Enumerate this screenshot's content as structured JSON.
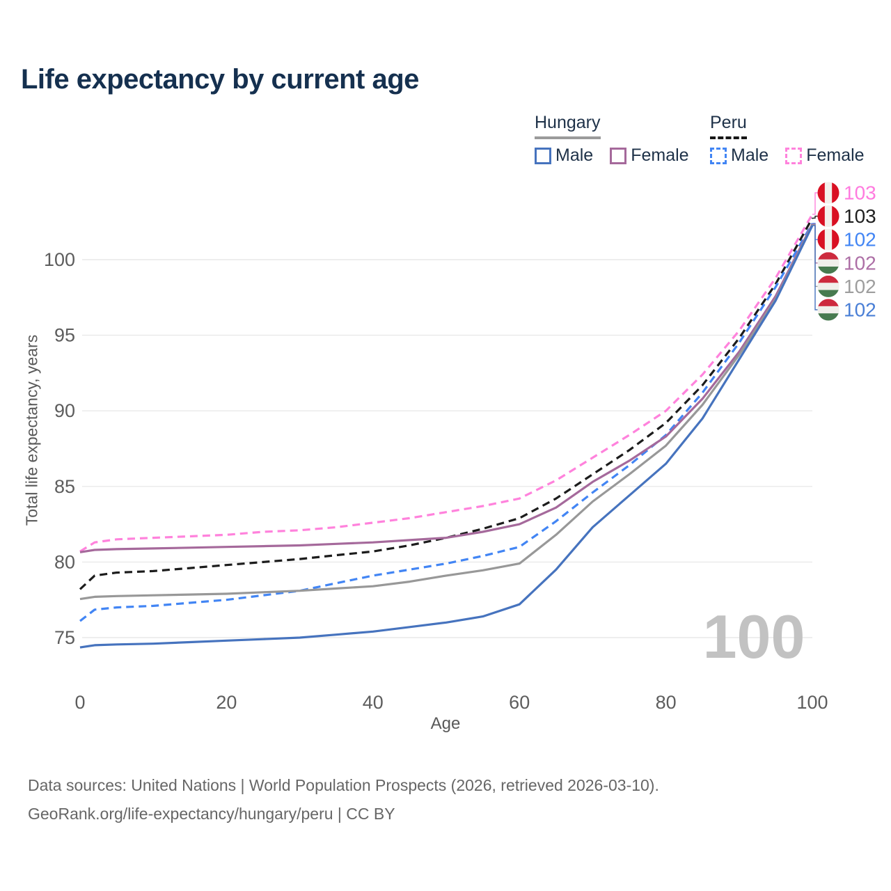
{
  "title": "Life expectancy by current age",
  "legend": {
    "groups": [
      {
        "label": "Hungary",
        "line_style": "solid",
        "underline_color": "#9b9b9b",
        "items": [
          {
            "label": "Male",
            "color": "#4673be"
          },
          {
            "label": "Female",
            "color": "#a5699b"
          }
        ]
      },
      {
        "label": "Peru",
        "line_style": "dashed",
        "underline_color": "#161616",
        "items": [
          {
            "label": "Male",
            "color": "#4285f4"
          },
          {
            "label": "Female",
            "color": "#ff82dc"
          }
        ]
      }
    ]
  },
  "watermark": "100",
  "footer": {
    "line1": "Data sources: United Nations | World Population Prospects (2026, retrieved 2026-03-10).",
    "line2": "GeoRank.org/life-expectancy/hungary/peru | CC BY"
  },
  "chart_data": {
    "type": "line",
    "title": "Life expectancy by current age",
    "xlabel": "Age",
    "ylabel": "Total life expectancy, years",
    "xlim": [
      0,
      100
    ],
    "ylim": [
      73.5,
      104.5
    ],
    "xticks": [
      0,
      20,
      40,
      60,
      80,
      100
    ],
    "yticks": [
      75,
      80,
      85,
      90,
      95,
      100
    ],
    "grid": "horizontal",
    "legend_position": "top-right",
    "x": [
      0,
      2,
      5,
      10,
      15,
      20,
      25,
      30,
      35,
      40,
      45,
      50,
      55,
      60,
      65,
      70,
      75,
      80,
      85,
      90,
      95,
      100
    ],
    "series": [
      {
        "name": "Peru Female",
        "country": "Peru",
        "sex": "Female",
        "color": "#ff82dc",
        "dashed": true,
        "flag": "peru",
        "end_label": "103",
        "end_label_color": "#ff7bdf",
        "values": [
          80.7,
          81.3,
          81.5,
          81.6,
          81.7,
          81.8,
          82.0,
          82.1,
          82.3,
          82.6,
          82.9,
          83.3,
          83.7,
          84.2,
          85.4,
          86.9,
          88.4,
          90.0,
          92.4,
          95.3,
          98.8,
          103.0
        ]
      },
      {
        "name": "Peru Total",
        "country": "Peru",
        "sex": "Both",
        "color": "#1c1c1c",
        "dashed": true,
        "flag": "peru",
        "end_label": "103",
        "end_label_color": "#1f1f1f",
        "values": [
          78.2,
          79.1,
          79.3,
          79.4,
          79.6,
          79.8,
          80.0,
          80.2,
          80.45,
          80.7,
          81.1,
          81.6,
          82.2,
          82.9,
          84.2,
          85.8,
          87.4,
          89.2,
          91.7,
          94.8,
          98.4,
          102.75
        ]
      },
      {
        "name": "Peru Male",
        "country": "Peru",
        "sex": "Male",
        "color": "#4285f4",
        "dashed": true,
        "flag": "peru",
        "end_label": "102",
        "end_label_color": "#4285f4",
        "values": [
          76.1,
          76.85,
          77.0,
          77.1,
          77.3,
          77.5,
          77.8,
          78.1,
          78.6,
          79.1,
          79.5,
          79.9,
          80.4,
          81.0,
          82.7,
          84.6,
          86.4,
          88.4,
          91.2,
          94.5,
          98.2,
          102.4
        ]
      },
      {
        "name": "Hungary Female",
        "country": "Hungary",
        "sex": "Female",
        "color": "#a5699b",
        "dashed": false,
        "flag": "hungary",
        "end_label": "102",
        "end_label_color": "#ad6fa6",
        "values": [
          80.65,
          80.8,
          80.85,
          80.9,
          80.95,
          81.0,
          81.05,
          81.1,
          81.2,
          81.3,
          81.45,
          81.6,
          82.0,
          82.5,
          83.6,
          85.3,
          86.7,
          88.3,
          90.8,
          93.9,
          97.6,
          102.35
        ]
      },
      {
        "name": "Hungary Total",
        "country": "Hungary",
        "sex": "Both",
        "color": "#989898",
        "dashed": false,
        "flag": "hungary",
        "end_label": "102",
        "end_label_color": "#9e9e9e",
        "values": [
          77.55,
          77.7,
          77.75,
          77.8,
          77.85,
          77.9,
          78.0,
          78.1,
          78.25,
          78.4,
          78.7,
          79.1,
          79.45,
          79.9,
          81.8,
          84.0,
          85.8,
          87.7,
          90.4,
          93.7,
          97.4,
          102.3
        ]
      },
      {
        "name": "Hungary Male",
        "country": "Hungary",
        "sex": "Male",
        "color": "#4673be",
        "dashed": false,
        "flag": "hungary",
        "end_label": "102",
        "end_label_color": "#4a7fd6",
        "values": [
          74.35,
          74.5,
          74.55,
          74.6,
          74.7,
          74.8,
          74.9,
          75.0,
          75.2,
          75.4,
          75.7,
          76.0,
          76.4,
          77.2,
          79.5,
          82.3,
          84.4,
          86.5,
          89.5,
          93.4,
          97.3,
          102.25
        ]
      }
    ]
  }
}
